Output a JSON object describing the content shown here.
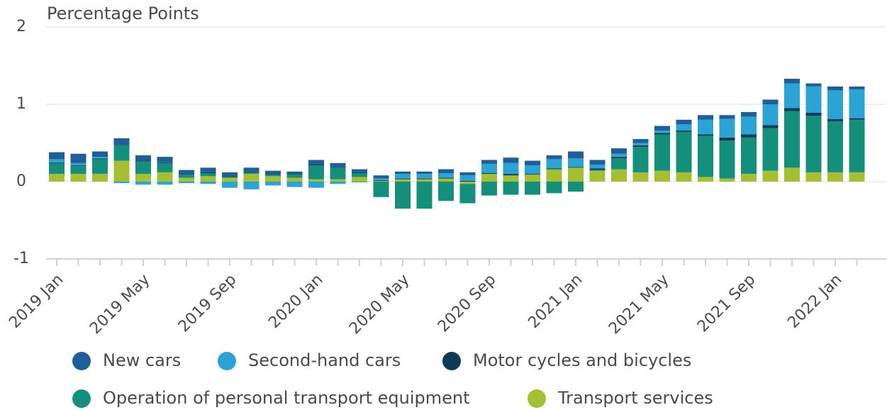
{
  "chart_data": {
    "type": "stacked-bar",
    "title": "Percentage Points",
    "categories": [
      "2019 Jan",
      null,
      null,
      null,
      "2019 May",
      null,
      null,
      null,
      "2019 Sep",
      null,
      null,
      null,
      "2020 Jan",
      null,
      null,
      null,
      "2020 May",
      null,
      null,
      null,
      "2020 Sep",
      null,
      null,
      null,
      "2021 Jan",
      null,
      null,
      null,
      "2021 May",
      null,
      null,
      null,
      "2021 Sep",
      null,
      null,
      null,
      "2022 Jan",
      null
    ],
    "series": [
      {
        "name": "New cars",
        "color": "#1f5f99",
        "values": [
          0.09,
          0.12,
          0.07,
          0.08,
          0.07,
          0.07,
          0.05,
          0.06,
          0.05,
          0.05,
          0.04,
          0.03,
          0.06,
          0.05,
          0.04,
          0.04,
          0.03,
          0.03,
          0.05,
          0.04,
          0.05,
          0.07,
          0.06,
          0.05,
          0.09,
          0.06,
          0.07,
          0.05,
          0.06,
          0.06,
          0.06,
          0.05,
          0.06,
          0.06,
          0.06,
          0.04,
          0.05,
          0.04
        ]
      },
      {
        "name": "Second-hand cars",
        "color": "#2ba3d4",
        "values": [
          0.04,
          0.03,
          0.02,
          -0.02,
          -0.04,
          -0.04,
          -0.02,
          -0.03,
          -0.08,
          -0.1,
          -0.05,
          -0.07,
          -0.08,
          -0.03,
          -0.01,
          0.02,
          0.06,
          0.06,
          0.06,
          0.07,
          0.12,
          0.14,
          0.11,
          0.12,
          0.11,
          0.05,
          0.04,
          0.03,
          0.03,
          0.08,
          0.19,
          0.24,
          0.23,
          0.27,
          0.32,
          0.34,
          0.37,
          0.37
        ]
      },
      {
        "name": "Motor cycles and bicycles",
        "color": "#0d3b57",
        "values": [
          0.01,
          0.01,
          0.01,
          0.01,
          0.01,
          0.01,
          0.01,
          0.01,
          0.01,
          0.01,
          0.01,
          0.01,
          0.01,
          0.01,
          0.01,
          0.01,
          0.01,
          0.01,
          0.01,
          0.01,
          0.01,
          0.02,
          0.01,
          0.01,
          0.01,
          0.02,
          0.02,
          0.02,
          0.02,
          0.02,
          0.02,
          0.04,
          0.04,
          0.04,
          0.04,
          0.04,
          0.03,
          0.02
        ]
      },
      {
        "name": "Operation of personal transport equipment",
        "color": "#138f7b",
        "values": [
          0.14,
          0.1,
          0.19,
          0.2,
          0.16,
          0.12,
          0.04,
          0.04,
          0.01,
          0.02,
          0.02,
          0.04,
          0.18,
          0.15,
          0.05,
          -0.2,
          -0.35,
          -0.35,
          -0.25,
          -0.25,
          -0.18,
          -0.17,
          -0.17,
          -0.15,
          -0.13,
          0.01,
          0.14,
          0.33,
          0.47,
          0.52,
          0.53,
          0.49,
          0.47,
          0.55,
          0.73,
          0.73,
          0.66,
          0.68
        ]
      },
      {
        "name": "Transport services",
        "color": "#a4bf32",
        "values": [
          0.1,
          0.1,
          0.1,
          0.27,
          0.1,
          0.12,
          0.05,
          0.07,
          0.05,
          0.1,
          0.07,
          0.05,
          0.03,
          0.03,
          0.06,
          0.01,
          0.03,
          0.03,
          0.04,
          -0.03,
          0.1,
          0.08,
          0.09,
          0.16,
          0.18,
          0.14,
          0.16,
          0.12,
          0.14,
          0.12,
          0.06,
          0.04,
          0.1,
          0.14,
          0.18,
          0.12,
          0.12,
          0.12
        ]
      }
    ],
    "ylim": [
      -1,
      2
    ],
    "yticks": [
      -1,
      0,
      1,
      2
    ],
    "grid": true
  }
}
